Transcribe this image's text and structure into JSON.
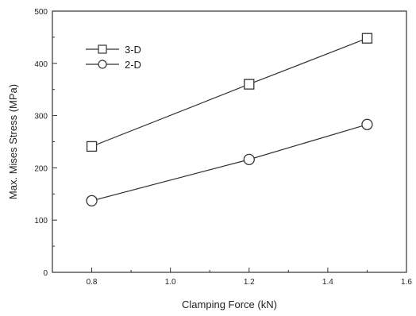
{
  "chart_data": {
    "type": "line",
    "title": "",
    "xlabel": "Clamping Force (kN)",
    "ylabel": "Max. Mises Stress (MPa)",
    "xlim": [
      0.7,
      1.6
    ],
    "ylim": [
      0,
      500
    ],
    "x_ticks": [
      "0.8",
      "1.0",
      "1.2",
      "1.4",
      "1.6"
    ],
    "y_ticks": [
      "0",
      "100",
      "200",
      "300",
      "400",
      "500"
    ],
    "grid": false,
    "legend_position": "top-left",
    "x": [
      0.8,
      1.2,
      1.5
    ],
    "series": [
      {
        "name": "3-D",
        "marker": "square",
        "values": [
          241,
          360,
          448
        ]
      },
      {
        "name": "2-D",
        "marker": "circle",
        "values": [
          137,
          216,
          283
        ]
      }
    ]
  },
  "colors": {
    "line": "#333333",
    "text": "#222222",
    "background": "#ffffff"
  }
}
